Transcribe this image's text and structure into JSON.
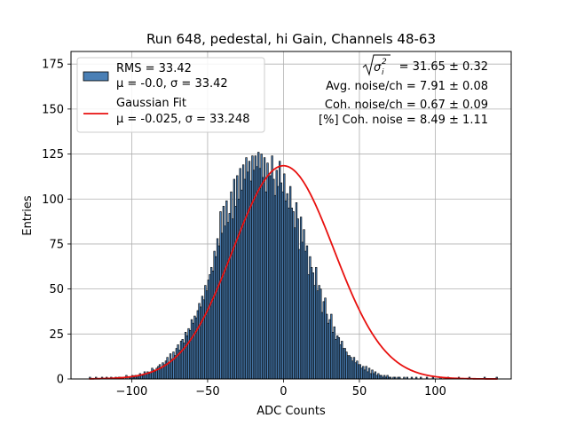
{
  "chart_data": {
    "type": "bar",
    "title": "Run 648, pedestal, hi Gain, Channels 48-63",
    "xlabel": "ADC Counts",
    "ylabel": "Entries",
    "xlim": [
      -140,
      150
    ],
    "ylim": [
      0,
      182
    ],
    "x_ticks": [
      -100,
      -50,
      0,
      50,
      100
    ],
    "x_tick_labels": [
      "−100",
      "−50",
      "0",
      "50",
      "100"
    ],
    "y_ticks": [
      0,
      25,
      50,
      75,
      100,
      125,
      150,
      175
    ],
    "y_tick_labels": [
      "0",
      "25",
      "50",
      "75",
      "100",
      "125",
      "150",
      "175"
    ],
    "grid": true,
    "legend_position": "top-left",
    "legend": [
      {
        "name": "RMS = 33.42",
        "detail": "μ = -0.0, σ = 33.42",
        "style": "bar",
        "color": "#4a7fb5"
      },
      {
        "name": "Gaussian Fit",
        "detail": "μ = -0.025, σ = 33.248",
        "style": "line",
        "color": "#e8110f"
      }
    ],
    "annotations": {
      "total_noise_value": "= 31.65 ± 0.32",
      "avg_noise": "Avg. noise/ch = 7.91 ± 0.08",
      "coh_noise": "Coh. noise/ch = 0.67 ± 0.09",
      "pct_coh_noise": "[%] Coh. noise = 8.49 ± 1.11"
    },
    "histogram": {
      "bin_start": -128,
      "bin_width": 1,
      "counts": [
        1,
        0,
        0,
        0,
        1,
        0,
        0,
        0,
        1,
        0,
        0,
        1,
        0,
        0,
        1,
        0,
        0,
        1,
        0,
        1,
        1,
        0,
        1,
        0,
        2,
        0,
        1,
        1,
        2,
        1,
        2,
        1,
        2,
        3,
        2,
        2,
        4,
        3,
        4,
        3,
        4,
        6,
        5,
        4,
        6,
        7,
        8,
        6,
        9,
        8,
        10,
        12,
        9,
        14,
        11,
        15,
        13,
        17,
        19,
        16,
        21,
        22,
        20,
        26,
        24,
        28,
        27,
        33,
        31,
        35,
        34,
        38,
        42,
        40,
        46,
        44,
        52,
        49,
        55,
        58,
        62,
        60,
        71,
        68,
        78,
        74,
        93,
        81,
        96,
        85,
        99,
        87,
        92,
        104,
        89,
        111,
        96,
        113,
        100,
        117,
        105,
        119,
        111,
        123,
        115,
        121,
        110,
        124,
        116,
        124,
        118,
        126,
        117,
        125,
        112,
        123,
        104,
        120,
        113,
        113,
        124,
        111,
        102,
        116,
        107,
        121,
        109,
        104,
        114,
        99,
        103,
        95,
        107,
        95,
        93,
        84,
        98,
        89,
        72,
        90,
        76,
        83,
        71,
        74,
        58,
        68,
        62,
        59,
        52,
        62,
        49,
        52,
        50,
        37,
        43,
        45,
        36,
        31,
        33,
        36,
        26,
        29,
        22,
        24,
        23,
        19,
        21,
        17,
        17,
        15,
        13,
        13,
        12,
        10,
        12,
        9,
        10,
        8,
        8,
        6,
        7,
        5,
        7,
        4,
        6,
        3,
        5,
        3,
        4,
        2,
        3,
        2,
        2,
        1,
        2,
        1,
        2,
        1,
        1,
        0,
        1,
        1,
        0,
        1,
        1,
        0,
        0,
        1,
        0,
        1,
        0,
        0,
        1,
        0,
        0,
        1,
        0,
        0,
        1,
        0,
        0,
        0,
        1,
        0,
        0,
        0,
        1,
        0,
        0,
        0,
        0,
        1,
        0,
        0,
        0,
        0,
        1,
        0,
        0,
        0,
        0,
        0,
        0,
        1,
        0,
        0,
        0,
        0,
        0,
        0,
        1,
        0,
        0,
        0,
        0,
        0,
        0,
        0,
        0,
        0,
        1,
        0,
        0,
        0,
        0,
        0,
        0,
        0,
        1
      ]
    },
    "fit": {
      "amplitude": 118.5,
      "mu": -0.025,
      "sigma": 33.248
    }
  }
}
